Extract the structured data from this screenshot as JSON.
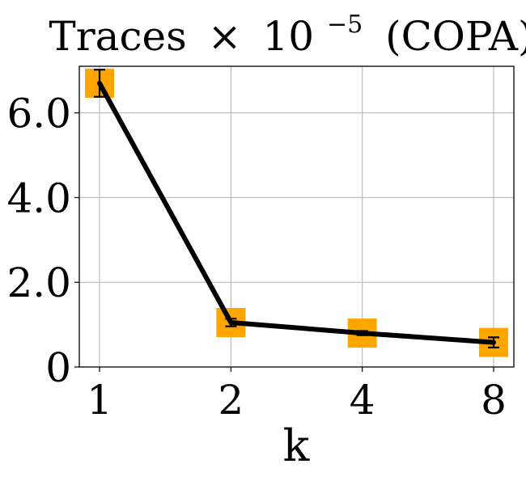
{
  "chart_data": {
    "type": "line",
    "title": {
      "base": "Traces",
      "times": "×",
      "power_base": "10",
      "exponent": "−5",
      "suffix": "(COPA)"
    },
    "xlabel": "k",
    "ylabel": "",
    "categories": [
      "1",
      "2",
      "4",
      "8"
    ],
    "yticks": [
      {
        "value": 0,
        "label": "0"
      },
      {
        "value": 2.0,
        "label": "2.0"
      },
      {
        "value": 4.0,
        "label": "4.0"
      },
      {
        "value": 6.0,
        "label": "6.0"
      }
    ],
    "ylim": [
      0,
      7.1
    ],
    "grid": true,
    "series": [
      {
        "values": [
          6.7,
          1.05,
          0.8,
          0.58
        ],
        "error": [
          0.32,
          0.09,
          0.05,
          0.12
        ],
        "line_color": "#000000",
        "marker_color": "#FFA500",
        "marker": "square"
      }
    ]
  }
}
